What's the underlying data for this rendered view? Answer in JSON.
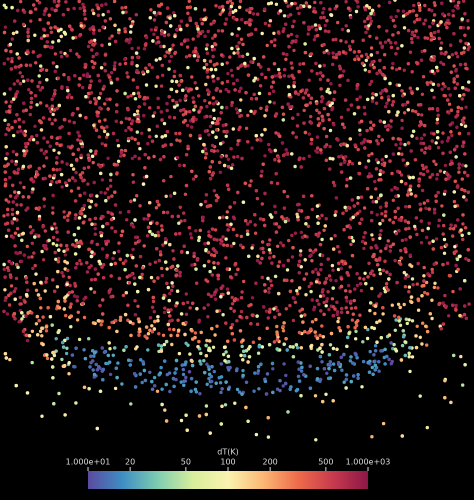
{
  "chart_data": {
    "type": "colorbar",
    "title": "dT(K)",
    "log_scale": true,
    "xlim": [
      10,
      1000
    ],
    "xticks": [
      {
        "value": 10,
        "label": "1.000e+01"
      },
      20,
      50,
      100,
      200,
      500,
      {
        "value": 1000,
        "label": "1.000e+03"
      }
    ],
    "colors": [
      "#5b4a9e",
      "#3f8fc4",
      "#7fcdb0",
      "#d8ee9c",
      "#f9f3b0",
      "#fbb874",
      "#ee6b4b",
      "#c73a4e",
      "#8c1747"
    ]
  }
}
